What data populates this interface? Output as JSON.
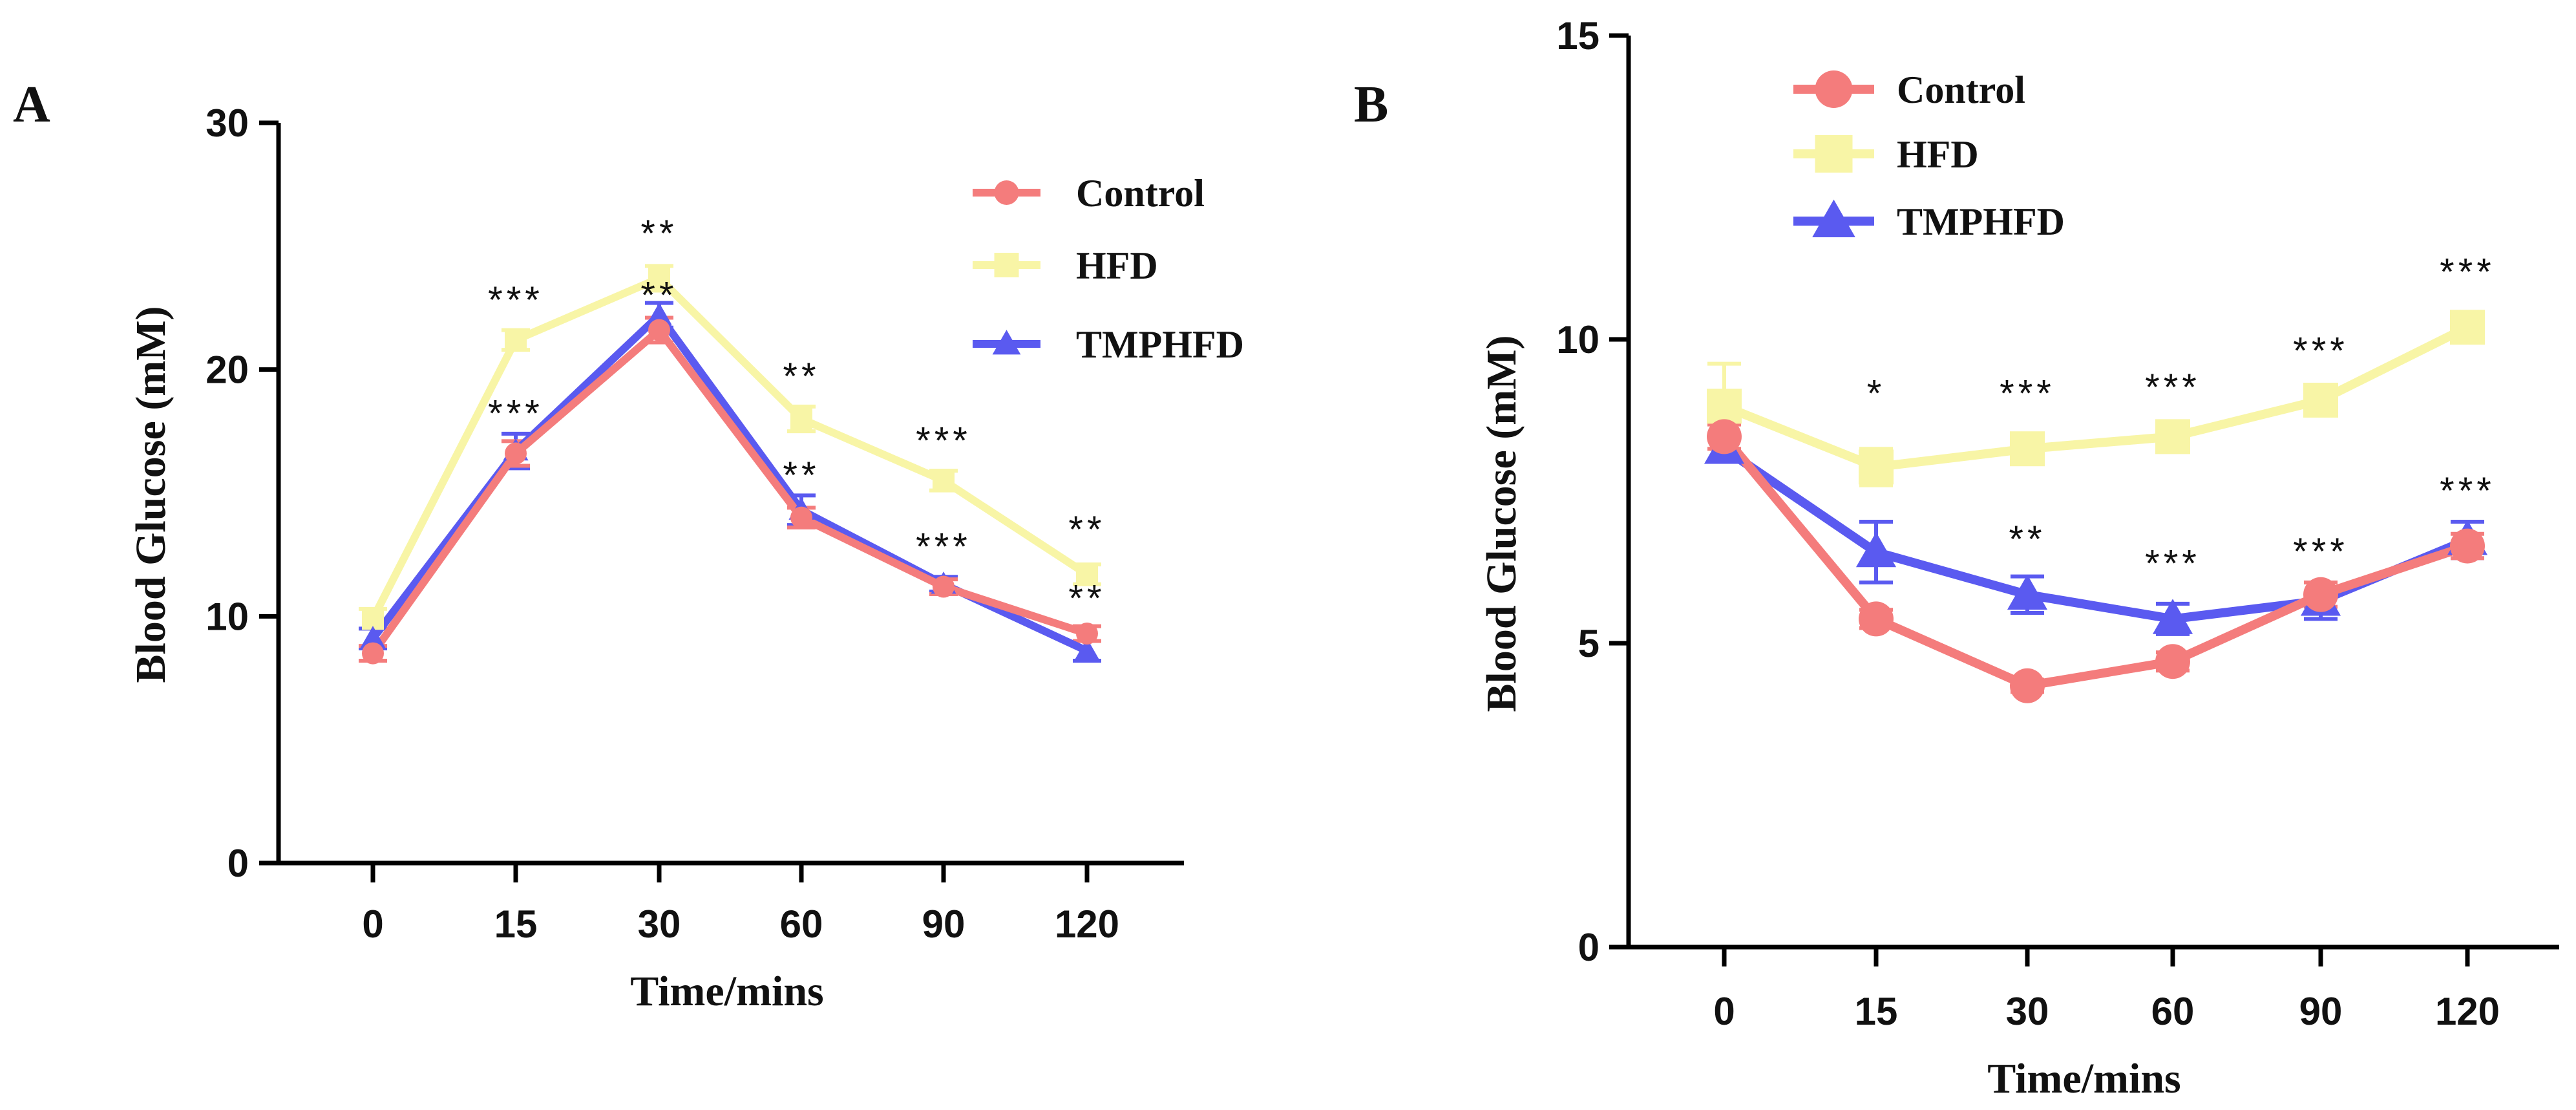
{
  "chart_data": [
    {
      "panel": "A",
      "type": "line",
      "title": "",
      "xlabel": "Time/mins",
      "ylabel": "Blood Glucose (mM)",
      "categories": [
        "0",
        "15",
        "30",
        "60",
        "90",
        "120"
      ],
      "ylim": [
        0,
        30
      ],
      "yticks": [
        0,
        10,
        20,
        30
      ],
      "legend_position": "top-right",
      "series": [
        {
          "name": "Control",
          "color": "#f47c7c",
          "marker": "circle",
          "values": [
            8.5,
            16.6,
            21.6,
            14.0,
            11.2,
            9.3
          ],
          "errors": [
            0.3,
            0.5,
            0.5,
            0.4,
            0.3,
            0.3
          ]
        },
        {
          "name": "HFD",
          "color": "#f8f5a6",
          "marker": "square",
          "values": [
            9.9,
            21.2,
            23.7,
            18.0,
            15.5,
            11.7
          ],
          "errors": [
            0.4,
            0.4,
            0.5,
            0.5,
            0.4,
            0.4
          ]
        },
        {
          "name": "TMPHFD",
          "color": "#5a5af0",
          "marker": "triangle",
          "values": [
            9.1,
            16.7,
            22.2,
            14.3,
            11.3,
            8.6
          ],
          "errors": [
            0.4,
            0.7,
            0.5,
            0.6,
            0.3,
            0.4
          ]
        }
      ],
      "annotations": [
        {
          "x": "15",
          "y": 22.3,
          "text": "***"
        },
        {
          "x": "15",
          "y": 17.7,
          "text": "***"
        },
        {
          "x": "30",
          "y": 25.0,
          "text": "**"
        },
        {
          "x": "30",
          "y": 22.5,
          "text": "**"
        },
        {
          "x": "60",
          "y": 19.2,
          "text": "**"
        },
        {
          "x": "60",
          "y": 15.2,
          "text": "**"
        },
        {
          "x": "90",
          "y": 16.6,
          "text": "***"
        },
        {
          "x": "90",
          "y": 12.3,
          "text": "***"
        },
        {
          "x": "120",
          "y": 13.0,
          "text": "**"
        },
        {
          "x": "120",
          "y": 10.2,
          "text": "**"
        }
      ]
    },
    {
      "panel": "B",
      "type": "line",
      "title": "",
      "xlabel": "Time/mins",
      "ylabel": "Blood Glucose (mM)",
      "categories": [
        "0",
        "15",
        "30",
        "60",
        "90",
        "120"
      ],
      "ylim": [
        0,
        15
      ],
      "yticks": [
        0,
        5,
        10,
        15
      ],
      "legend_position": "top-left",
      "series": [
        {
          "name": "Control",
          "color": "#f47c7c",
          "marker": "circle",
          "values": [
            8.4,
            5.4,
            4.3,
            4.7,
            5.8,
            6.6
          ],
          "errors": [
            0.2,
            0.15,
            0.1,
            0.15,
            0.2,
            0.2
          ]
        },
        {
          "name": "HFD",
          "color": "#f8f5a6",
          "marker": "square",
          "values": [
            8.9,
            7.9,
            8.2,
            8.4,
            9.0,
            10.2
          ],
          "errors": [
            0.7,
            0.3,
            0.2,
            0.2,
            0.2,
            0.25
          ]
        },
        {
          "name": "TMPHFD",
          "color": "#5a5af0",
          "marker": "triangle",
          "values": [
            8.2,
            6.5,
            5.8,
            5.4,
            5.7,
            6.7
          ],
          "errors": [
            0.2,
            0.5,
            0.3,
            0.25,
            0.3,
            0.3
          ]
        }
      ],
      "annotations": [
        {
          "x": "15",
          "y": 8.9,
          "text": "*"
        },
        {
          "x": "30",
          "y": 8.9,
          "text": "***"
        },
        {
          "x": "60",
          "y": 9.0,
          "text": "***"
        },
        {
          "x": "90",
          "y": 9.6,
          "text": "***"
        },
        {
          "x": "120",
          "y": 10.9,
          "text": "***"
        },
        {
          "x": "30",
          "y": 6.5,
          "text": "**"
        },
        {
          "x": "60",
          "y": 6.1,
          "text": "***"
        },
        {
          "x": "90",
          "y": 6.3,
          "text": "***"
        },
        {
          "x": "120",
          "y": 7.3,
          "text": "***"
        }
      ]
    }
  ]
}
